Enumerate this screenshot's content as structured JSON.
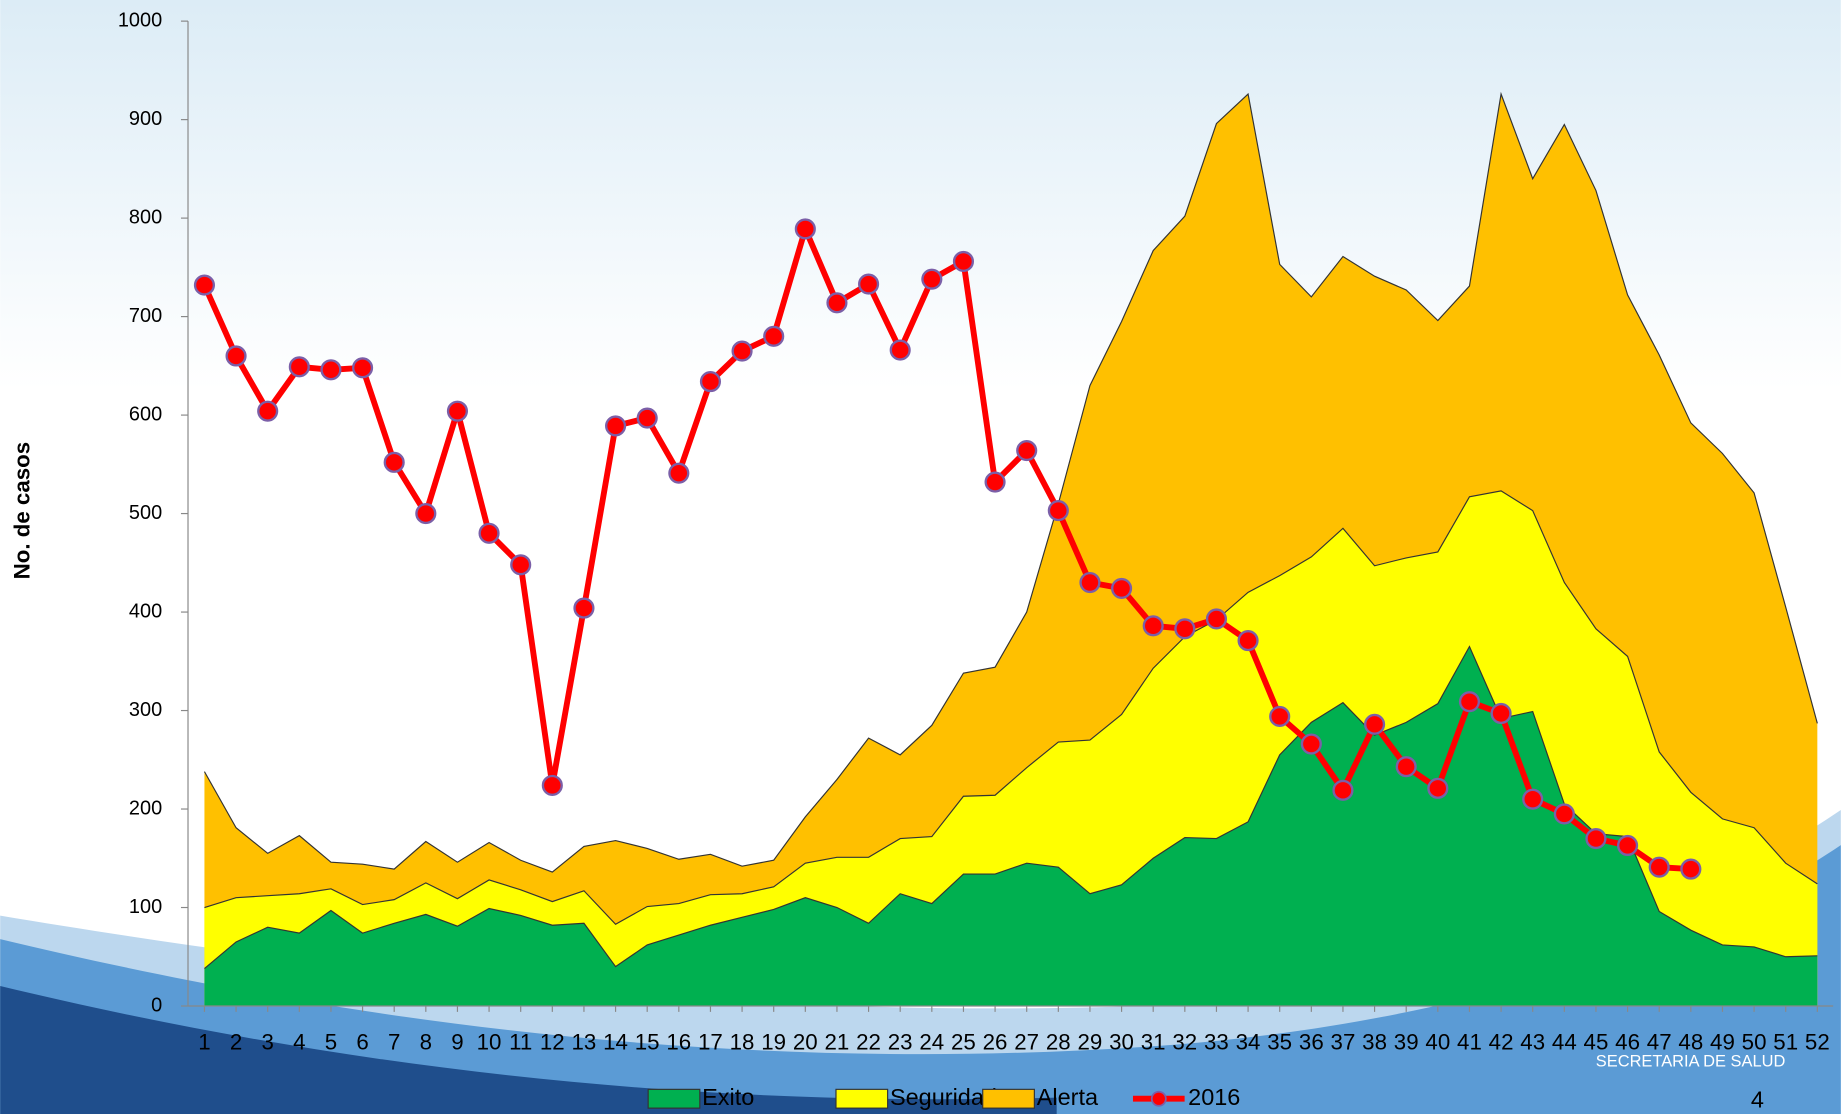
{
  "chart_data": {
    "type": "area",
    "y_axis_label": "No. de casos",
    "categories": [
      1,
      2,
      3,
      4,
      5,
      6,
      7,
      8,
      9,
      10,
      11,
      12,
      13,
      14,
      15,
      16,
      17,
      18,
      19,
      20,
      21,
      22,
      23,
      24,
      25,
      26,
      27,
      28,
      29,
      30,
      31,
      32,
      33,
      34,
      35,
      36,
      37,
      38,
      39,
      40,
      41,
      42,
      43,
      44,
      45,
      46,
      47,
      48,
      49,
      50,
      51,
      52
    ],
    "ylim": [
      0,
      1000
    ],
    "yticks": [
      0,
      100,
      200,
      300,
      400,
      500,
      600,
      700,
      800,
      900,
      1000
    ],
    "series": [
      {
        "name": "Exito",
        "color": "#00b050",
        "values": [
          38,
          65,
          80,
          74,
          97,
          74,
          84,
          93,
          81,
          99,
          92,
          82,
          84,
          40,
          62,
          72,
          82,
          90,
          98,
          110,
          100,
          84,
          114,
          104,
          134,
          134,
          145,
          141,
          114,
          123,
          150,
          171,
          170,
          187,
          255,
          288,
          308,
          275,
          288,
          307,
          365,
          292,
          299,
          205,
          175,
          172,
          96,
          77,
          62,
          60,
          50,
          51
        ]
      },
      {
        "name": "Seguridad",
        "color": "#ffff00",
        "values": [
          100,
          110,
          112,
          114,
          119,
          103,
          108,
          125,
          109,
          128,
          118,
          106,
          117,
          83,
          101,
          104,
          113,
          114,
          121,
          145,
          151,
          151,
          170,
          172,
          213,
          214,
          242,
          268,
          270,
          296,
          343,
          375,
          392,
          420,
          437,
          456,
          485,
          447,
          455,
          461,
          517,
          523,
          503,
          430,
          383,
          355,
          258,
          217,
          190,
          181,
          145,
          124
        ]
      },
      {
        "name": "Alerta",
        "color": "#ffc000",
        "values": [
          238,
          181,
          155,
          173,
          146,
          144,
          139,
          167,
          146,
          166,
          148,
          136,
          162,
          168,
          160,
          149,
          154,
          142,
          148,
          192,
          230,
          272,
          255,
          285,
          338,
          344,
          400,
          510,
          630,
          695,
          767,
          802,
          896,
          926,
          753,
          720,
          761,
          741,
          727,
          696,
          731,
          926,
          840,
          895,
          828,
          722,
          661,
          592,
          561,
          521,
          405,
          287
        ]
      },
      {
        "name": "2016",
        "type": "line",
        "color": "#ff0000",
        "marker_edge_color": "#7b5fa8",
        "values": [
          732,
          660,
          604,
          649,
          646,
          648,
          552,
          500,
          604,
          480,
          448,
          224,
          404,
          589,
          597,
          541,
          634,
          665,
          680,
          789,
          714,
          733,
          666,
          738,
          756,
          532,
          564,
          503,
          430,
          424,
          386,
          383,
          393,
          371,
          294,
          266,
          219,
          286,
          243,
          221,
          309,
          297,
          210,
          195,
          170,
          163,
          141,
          139,
          null,
          null,
          null,
          null
        ]
      }
    ],
    "page_number": "4",
    "logo_text": "SECRETARIA DE SALUD"
  }
}
